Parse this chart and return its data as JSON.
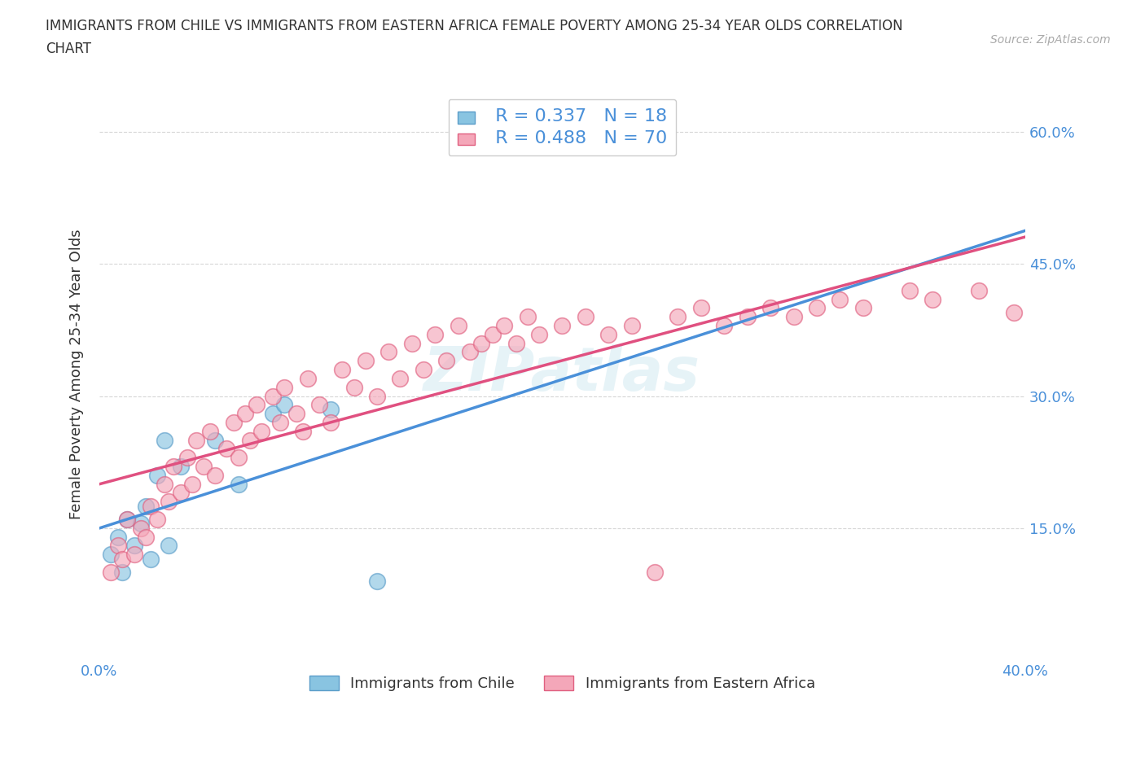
{
  "title_line1": "IMMIGRANTS FROM CHILE VS IMMIGRANTS FROM EASTERN AFRICA FEMALE POVERTY AMONG 25-34 YEAR OLDS CORRELATION",
  "title_line2": "CHART",
  "source_text": "Source: ZipAtlas.com",
  "ylabel": "Female Poverty Among 25-34 Year Olds",
  "xlim": [
    0.0,
    0.4
  ],
  "ylim": [
    0.0,
    0.65
  ],
  "xticks": [
    0.0,
    0.05,
    0.1,
    0.15,
    0.2,
    0.25,
    0.3,
    0.35,
    0.4
  ],
  "ytick_positions": [
    0.15,
    0.3,
    0.45,
    0.6
  ],
  "yticklabels_right": [
    "15.0%",
    "30.0%",
    "45.0%",
    "60.0%"
  ],
  "watermark": "ZIPatlas",
  "chile_color": "#89c4e1",
  "chile_edge": "#5b9dc9",
  "eastern_africa_color": "#f4a7b9",
  "eastern_africa_edge": "#e06080",
  "chile_R": 0.337,
  "chile_N": 18,
  "eastern_africa_R": 0.488,
  "eastern_africa_N": 70,
  "chile_line_color": "#4a90d9",
  "eastern_africa_line_color": "#e05080",
  "legend_label_chile": "Immigrants from Chile",
  "legend_label_eastern": "Immigrants from Eastern Africa",
  "grid_color": "#cccccc",
  "background_color": "#ffffff",
  "tick_label_color": "#4a90d9",
  "chile_points_x": [
    0.005,
    0.008,
    0.01,
    0.012,
    0.015,
    0.018,
    0.02,
    0.022,
    0.025,
    0.028,
    0.03,
    0.035,
    0.05,
    0.06,
    0.075,
    0.08,
    0.1,
    0.12
  ],
  "chile_points_y": [
    0.12,
    0.14,
    0.1,
    0.16,
    0.13,
    0.155,
    0.175,
    0.115,
    0.21,
    0.25,
    0.13,
    0.22,
    0.25,
    0.2,
    0.28,
    0.29,
    0.285,
    0.09
  ],
  "eastern_points_x": [
    0.005,
    0.008,
    0.01,
    0.012,
    0.015,
    0.018,
    0.02,
    0.022,
    0.025,
    0.028,
    0.03,
    0.032,
    0.035,
    0.038,
    0.04,
    0.042,
    0.045,
    0.048,
    0.05,
    0.055,
    0.058,
    0.06,
    0.063,
    0.065,
    0.068,
    0.07,
    0.075,
    0.078,
    0.08,
    0.085,
    0.088,
    0.09,
    0.095,
    0.1,
    0.105,
    0.11,
    0.115,
    0.12,
    0.125,
    0.13,
    0.135,
    0.14,
    0.145,
    0.15,
    0.155,
    0.16,
    0.165,
    0.17,
    0.175,
    0.18,
    0.185,
    0.19,
    0.2,
    0.21,
    0.22,
    0.23,
    0.24,
    0.25,
    0.26,
    0.27,
    0.28,
    0.29,
    0.3,
    0.31,
    0.32,
    0.33,
    0.35,
    0.36,
    0.38,
    0.395
  ],
  "eastern_points_y": [
    0.1,
    0.13,
    0.115,
    0.16,
    0.12,
    0.15,
    0.14,
    0.175,
    0.16,
    0.2,
    0.18,
    0.22,
    0.19,
    0.23,
    0.2,
    0.25,
    0.22,
    0.26,
    0.21,
    0.24,
    0.27,
    0.23,
    0.28,
    0.25,
    0.29,
    0.26,
    0.3,
    0.27,
    0.31,
    0.28,
    0.26,
    0.32,
    0.29,
    0.27,
    0.33,
    0.31,
    0.34,
    0.3,
    0.35,
    0.32,
    0.36,
    0.33,
    0.37,
    0.34,
    0.38,
    0.35,
    0.36,
    0.37,
    0.38,
    0.36,
    0.39,
    0.37,
    0.38,
    0.39,
    0.37,
    0.38,
    0.1,
    0.39,
    0.4,
    0.38,
    0.39,
    0.4,
    0.39,
    0.4,
    0.41,
    0.4,
    0.42,
    0.41,
    0.42,
    0.395
  ]
}
